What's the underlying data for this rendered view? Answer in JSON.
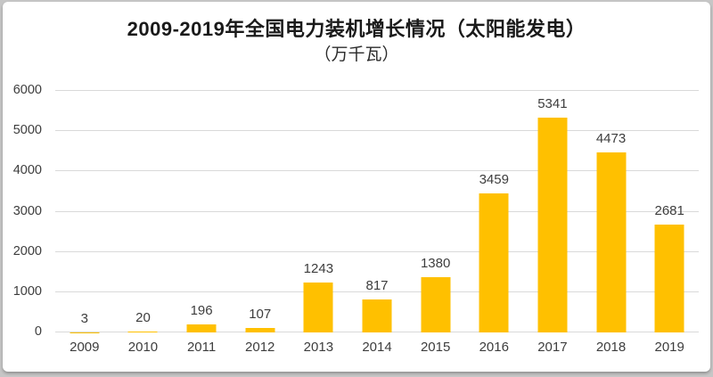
{
  "window": {
    "background_color": "#ffffff",
    "frame_color": "#c6c6c6"
  },
  "chart_data": {
    "type": "bar",
    "title": "2009-2019年全国电力装机增长情况（太阳能发电）",
    "subtitle": "（万千瓦）",
    "categories": [
      "2009",
      "2010",
      "2011",
      "2012",
      "2013",
      "2014",
      "2015",
      "2016",
      "2017",
      "2018",
      "2019"
    ],
    "values": [
      3,
      20,
      196,
      107,
      1243,
      817,
      1380,
      3459,
      5341,
      4473,
      2681
    ],
    "xlabel": "",
    "ylabel": "",
    "ylim": [
      0,
      6000
    ],
    "ytick_step": 1000,
    "yticks": [
      "0",
      "1000",
      "2000",
      "3000",
      "4000",
      "5000",
      "6000"
    ],
    "grid": true,
    "legend_position": "none",
    "bar_color": "#FFC000",
    "gridline_color": "#D9D9D9",
    "tick_label_color": "#3D3D3D",
    "value_label_color": "#3D3D3D"
  }
}
